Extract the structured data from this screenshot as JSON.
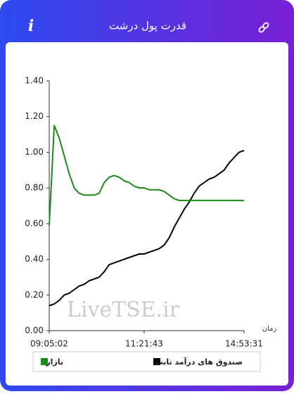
{
  "header": {
    "icon": "i"
  },
  "chart_data": {
    "type": "line",
    "title": "قدرت پول درشت",
    "watermark": "LiveTSE.ir",
    "x_label": "زمان",
    "categories": [
      "09:05:02",
      null,
      null,
      null,
      null,
      null,
      null,
      null,
      null,
      null,
      null,
      null,
      null,
      null,
      null,
      null,
      null,
      null,
      null,
      "11:21:43",
      null,
      null,
      null,
      null,
      null,
      null,
      null,
      null,
      null,
      null,
      null,
      null,
      null,
      null,
      null,
      null,
      null,
      null,
      null,
      "14:53:31"
    ],
    "series": [
      {
        "name": "صندوق های درآمد ثابت",
        "color": "#000000",
        "values": [
          0.14,
          0.15,
          0.17,
          0.2,
          0.21,
          0.23,
          0.25,
          0.26,
          0.28,
          0.29,
          0.3,
          0.33,
          0.37,
          0.38,
          0.39,
          0.4,
          0.41,
          0.42,
          0.43,
          0.43,
          0.44,
          0.45,
          0.46,
          0.48,
          0.52,
          0.58,
          0.63,
          0.68,
          0.72,
          0.77,
          0.81,
          0.83,
          0.85,
          0.86,
          0.88,
          0.9,
          0.94,
          0.97,
          1.0,
          1.01
        ]
      },
      {
        "name": "بازار",
        "color": "#1a8a1a",
        "values": [
          0.59,
          1.15,
          1.08,
          0.98,
          0.88,
          0.8,
          0.77,
          0.76,
          0.76,
          0.76,
          0.77,
          0.83,
          0.86,
          0.87,
          0.86,
          0.84,
          0.83,
          0.81,
          0.8,
          0.8,
          0.79,
          0.79,
          0.79,
          0.78,
          0.76,
          0.74,
          0.73,
          0.73,
          0.73,
          0.73,
          0.73,
          0.73,
          0.73,
          0.73,
          0.73,
          0.73,
          0.73,
          0.73,
          0.73,
          0.73
        ]
      }
    ],
    "ylim": [
      0,
      1.4
    ],
    "yticks": [
      {
        "value": 0,
        "label": "0.00"
      },
      {
        "value": 0.2,
        "label": "0.20"
      },
      {
        "value": 0.4,
        "label": "0.40"
      },
      {
        "value": 0.6,
        "label": "0.60"
      },
      {
        "value": 0.8,
        "label": "0.80"
      },
      {
        "value": 1.0,
        "label": "1.00"
      },
      {
        "value": 1.2,
        "label": "1.20"
      },
      {
        "value": 1.4,
        "label": "1.40"
      }
    ]
  }
}
